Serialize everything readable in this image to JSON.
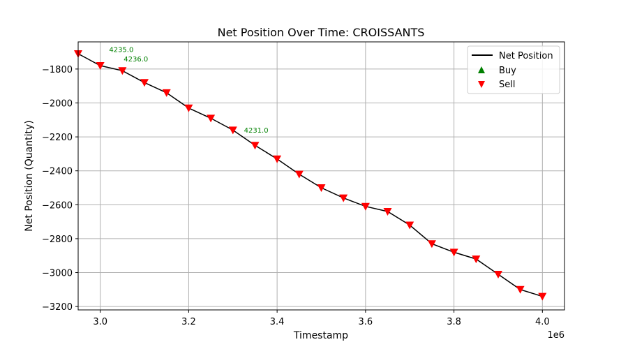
{
  "chart_data": {
    "type": "scatter",
    "title": "Net Position Over Time: CROISSANTS",
    "xlabel": "Timestamp",
    "ylabel": "Net Position (Quantity)",
    "x_offset_label": "1e6",
    "xlim": [
      2.95,
      4.05
    ],
    "ylim": [
      -3220,
      -1640
    ],
    "xticks": [
      3.0,
      3.2,
      3.4,
      3.6,
      3.8,
      4.0
    ],
    "xtick_labels": [
      "3.0",
      "3.2",
      "3.4",
      "3.6",
      "3.8",
      "4.0"
    ],
    "yticks": [
      -1800,
      -2000,
      -2200,
      -2400,
      -2600,
      -2800,
      -3000,
      -3200
    ],
    "ytick_labels": [
      "−1800",
      "−2000",
      "−2200",
      "−2400",
      "−2600",
      "−2800",
      "−3000",
      "−3200"
    ],
    "grid": true,
    "legend_position": "top-right",
    "colors": {
      "net_position": "#000000",
      "buy": "#008000",
      "sell": "#ff0000",
      "grid": "#b0b0b0",
      "annotation": "#008000"
    },
    "series": [
      {
        "name": "Net Position",
        "kind": "line",
        "x": [
          2.95,
          3.0,
          3.05,
          3.1,
          3.15,
          3.2,
          3.25,
          3.3,
          3.35,
          3.4,
          3.45,
          3.5,
          3.55,
          3.6,
          3.65,
          3.7,
          3.75,
          3.8,
          3.85,
          3.9,
          3.95,
          4.0
        ],
        "y": [
          -1710,
          -1780,
          -1810,
          -1880,
          -1940,
          -2030,
          -2090,
          -2160,
          -2250,
          -2330,
          -2420,
          -2500,
          -2560,
          -2610,
          -2640,
          -2720,
          -2830,
          -2880,
          -2920,
          -3010,
          -3100,
          -3140
        ]
      },
      {
        "name": "Buy",
        "kind": "marker-up"
      },
      {
        "name": "Sell",
        "kind": "marker-down",
        "x": [
          2.95,
          3.0,
          3.05,
          3.1,
          3.15,
          3.2,
          3.25,
          3.3,
          3.35,
          3.4,
          3.45,
          3.5,
          3.55,
          3.6,
          3.65,
          3.7,
          3.75,
          3.8,
          3.85,
          3.9,
          3.95,
          4.0
        ],
        "y": [
          -1710,
          -1780,
          -1810,
          -1880,
          -1940,
          -2030,
          -2090,
          -2160,
          -2250,
          -2330,
          -2420,
          -2500,
          -2560,
          -2610,
          -2640,
          -2720,
          -2830,
          -2880,
          -2920,
          -3010,
          -3100,
          -3140
        ]
      }
    ],
    "annotations": [
      {
        "text": "4235.0",
        "x": 3.02,
        "y": -1700
      },
      {
        "text": "4236.0",
        "x": 3.053,
        "y": -1755
      },
      {
        "text": "4231.0",
        "x": 3.325,
        "y": -2175
      }
    ]
  }
}
